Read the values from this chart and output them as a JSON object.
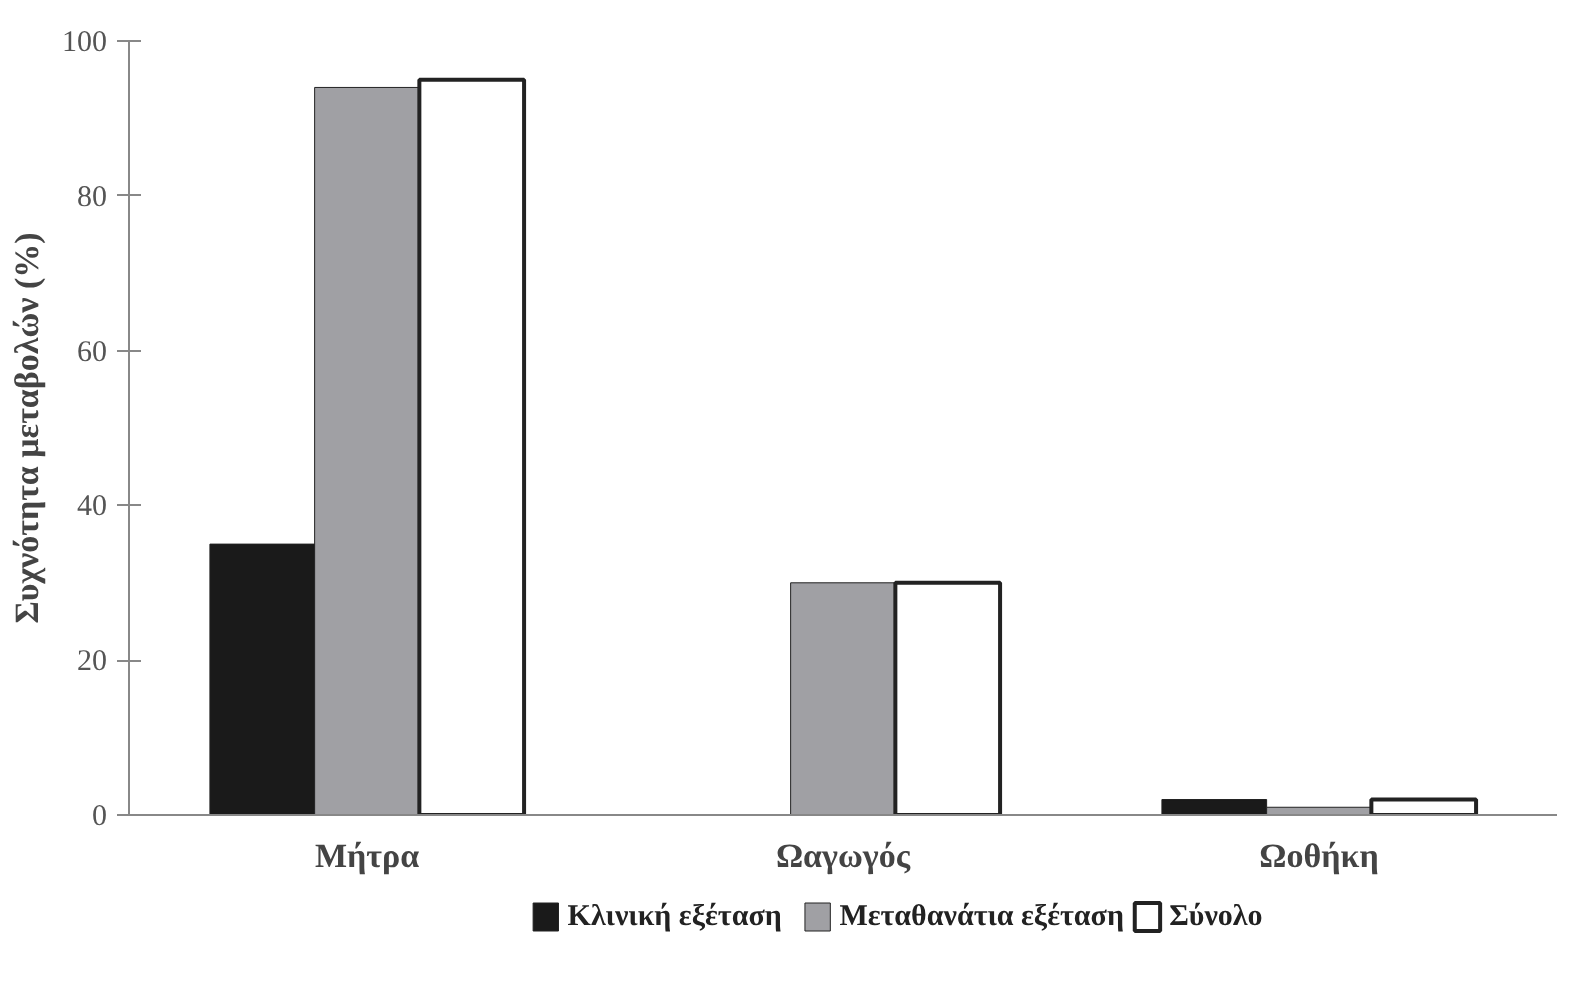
{
  "chart_data": {
    "type": "bar",
    "ylabel": "Συχνότητα μεταβολών (%)",
    "categories": [
      "Μήτρα",
      "Ωαγωγός",
      "Ωοθήκη"
    ],
    "series": [
      {
        "name": "Κλινική εξέταση",
        "color": "#1a1a1a",
        "values": [
          35,
          0,
          2
        ]
      },
      {
        "name": "Μεταθανάτια εξέταση",
        "color": "#a0a0a4",
        "values": [
          94,
          30,
          1
        ]
      },
      {
        "name": "Σύνολο",
        "color": "#ffffff",
        "values": [
          95,
          30,
          2
        ]
      }
    ],
    "ylim": [
      0,
      100
    ],
    "yticks": [
      0,
      20,
      40,
      60,
      80,
      100
    ],
    "grid": false,
    "legend": "bottom"
  }
}
